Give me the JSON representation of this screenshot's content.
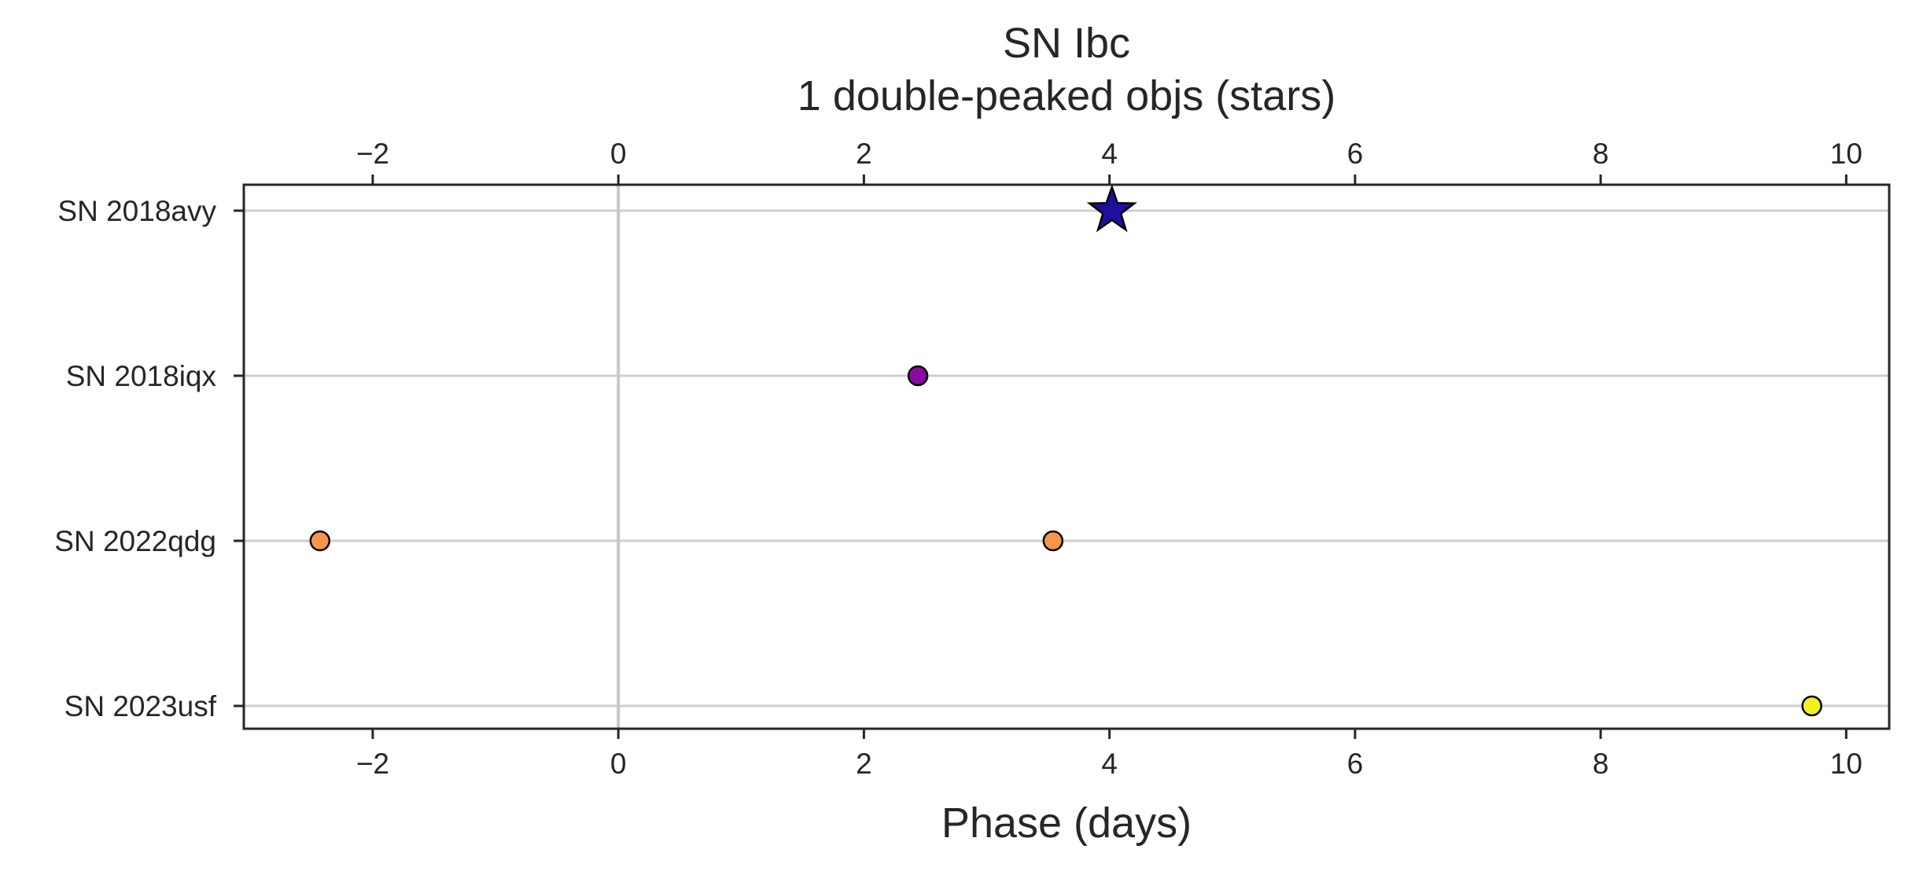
{
  "chart_data": {
    "type": "scatter",
    "title": "SN Ibc",
    "subtitle": "1 double-peaked objs (stars)",
    "xlabel": "Phase (days)",
    "ylabel": "",
    "xlim": [
      -3.05,
      10.35
    ],
    "xticks": [
      -2,
      0,
      2,
      4,
      6,
      8,
      10
    ],
    "xtick_labels": [
      "−2",
      "0",
      "2",
      "4",
      "6",
      "8",
      "10"
    ],
    "top_axis_duplicate": true,
    "categories": [
      "SN 2018avy",
      "SN 2018iqx",
      "SN 2022qdg",
      "SN 2023usf"
    ],
    "grid": "horizontal at each object",
    "reference_line_x": 0,
    "points": [
      {
        "object": "SN 2018avy",
        "x": 4.02,
        "marker": "star",
        "color": "#1f0f9e"
      },
      {
        "object": "SN 2018iqx",
        "x": 2.44,
        "marker": "circle",
        "color": "#8a0aa6"
      },
      {
        "object": "SN 2022qdg",
        "x": -2.43,
        "marker": "circle",
        "color": "#f8954a"
      },
      {
        "object": "SN 2022qdg",
        "x": 3.54,
        "marker": "circle",
        "color": "#f8954a"
      },
      {
        "object": "SN 2023usf",
        "x": 9.72,
        "marker": "circle",
        "color": "#f0f121"
      }
    ]
  }
}
